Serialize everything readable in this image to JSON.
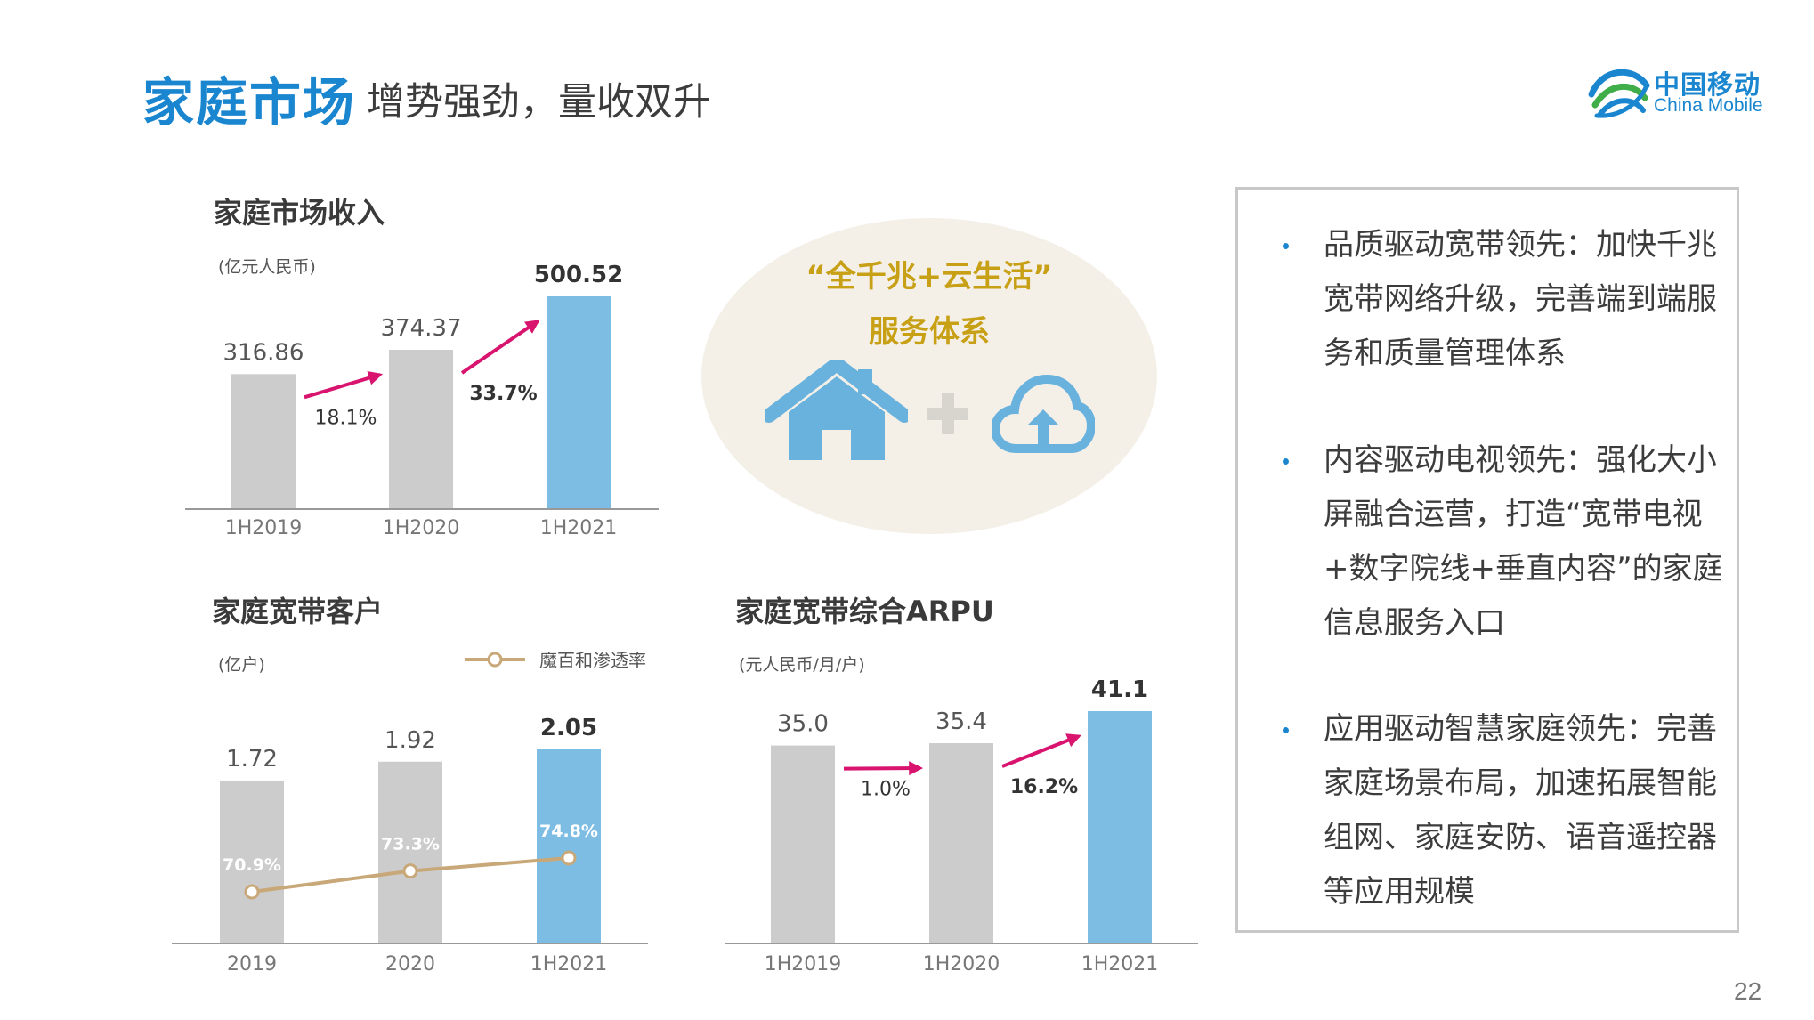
{
  "header": {
    "title_main": "家庭市场",
    "title_sub": "增势强劲，量收双升",
    "logo_cn": "中国移动",
    "logo_en": "China Mobile"
  },
  "center": {
    "slogan_line1": "“全千兆+云生活”",
    "slogan_line2": "服务体系",
    "icons": [
      "house-icon",
      "plus-icon",
      "cloud-upload-icon"
    ]
  },
  "panel": {
    "bullets": [
      {
        "text": "品质驱动宽带领先：加快千兆宽带网络升级，完善端到端服务和质量管理体系"
      },
      {
        "text": "内容驱动电视领先：强化大小屏融合运营，打造“宽带电视+数字院线+垂直内容”的家庭信息服务入口"
      },
      {
        "text": "应用驱动智慧家庭领先：完善家庭场景布局，加速拓展智能组网、家庭安防、语音遥控器等应用规模"
      }
    ]
  },
  "page_number": "22",
  "colors": {
    "accent": "#1a86cf",
    "bar_gray": "#cccccc",
    "bar_blue": "#7dbde4",
    "arrow": "#d8146f",
    "line_gold": "#c8a878",
    "slogan": "#c8a016"
  },
  "chart_data": [
    {
      "id": "revenue",
      "type": "bar",
      "title": "家庭市场收入",
      "unit": "(亿元人民币)",
      "categories": [
        "1H2019",
        "1H2020",
        "1H2021"
      ],
      "values": [
        316.86,
        374.37,
        500.52
      ],
      "value_labels": [
        "316.86",
        "374.37",
        "500.52"
      ],
      "highlight_index": 2,
      "ylim": [
        0,
        500.52
      ],
      "growth": [
        {
          "from": 0,
          "to": 1,
          "label": "18.1%"
        },
        {
          "from": 1,
          "to": 2,
          "label": "33.7%"
        }
      ]
    },
    {
      "id": "broadband",
      "type": "bar",
      "title": "家庭宽带客户",
      "unit": "(亿户)",
      "categories": [
        "2019",
        "2020",
        "1H2021"
      ],
      "values": [
        1.72,
        1.92,
        2.05
      ],
      "value_labels": [
        "1.72",
        "1.92",
        "2.05"
      ],
      "highlight_index": 2,
      "ylim": [
        0,
        2.05
      ],
      "line_series": {
        "name": "魔百和渗透率",
        "values": [
          70.9,
          73.3,
          74.8
        ],
        "labels": [
          "70.9%",
          "73.3%",
          "74.8%"
        ]
      },
      "legend": "top-right"
    },
    {
      "id": "arpu",
      "type": "bar",
      "title": "家庭宽带综合ARPU",
      "unit": "(元人民币/月/户)",
      "categories": [
        "1H2019",
        "1H2020",
        "1H2021"
      ],
      "values": [
        35.0,
        35.4,
        41.1
      ],
      "value_labels": [
        "35.0",
        "35.4",
        "41.1"
      ],
      "highlight_index": 2,
      "ylim": [
        0,
        41.1
      ],
      "growth": [
        {
          "from": 0,
          "to": 1,
          "label": "1.0%"
        },
        {
          "from": 1,
          "to": 2,
          "label": "16.2%"
        }
      ]
    }
  ]
}
